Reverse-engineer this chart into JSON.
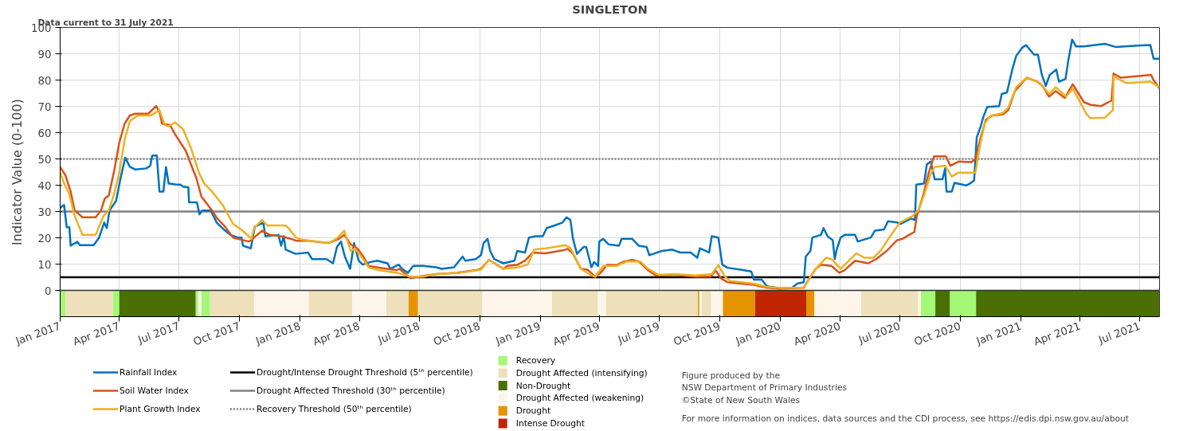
{
  "chart_data": {
    "type": "line",
    "title": "SINGLETON",
    "ylabel": "Indicator Value (0-100)",
    "annotations": [
      "Data current to 31 July 2021",
      "Figure produced by the\nNSW Department of Primary Industries\n©State of New South Wales",
      "For more information on indices, data sources and the CDI process, see https://edis.dpi.nsw.gov.au/about"
    ],
    "xlim": [
      "2017-01-01",
      "2021-07-31"
    ],
    "xticks": [
      {
        "value": "2017-01-01",
        "label": "Jan 2017"
      },
      {
        "value": "2017-04-01",
        "label": "Apr 2017"
      },
      {
        "value": "2017-07-01",
        "label": "Jul 2017"
      },
      {
        "value": "2017-10-01",
        "label": "Oct 2017"
      },
      {
        "value": "2018-01-01",
        "label": "Jan 2018"
      },
      {
        "value": "2018-04-01",
        "label": "Apr 2018"
      },
      {
        "value": "2018-07-01",
        "label": "Jul 2018"
      },
      {
        "value": "2018-10-01",
        "label": "Oct 2018"
      },
      {
        "value": "2019-01-01",
        "label": "Jan 2019"
      },
      {
        "value": "2019-04-01",
        "label": "Apr 2019"
      },
      {
        "value": "2019-07-01",
        "label": "Jul 2019"
      },
      {
        "value": "2019-10-01",
        "label": "Oct 2019"
      },
      {
        "value": "2020-01-01",
        "label": "Jan 2020"
      },
      {
        "value": "2020-04-01",
        "label": "Apr 2020"
      },
      {
        "value": "2020-07-01",
        "label": "Jul 2020"
      },
      {
        "value": "2020-10-01",
        "label": "Oct 2020"
      },
      {
        "value": "2021-01-01",
        "label": "Jan 2021"
      },
      {
        "value": "2021-04-01",
        "label": "Apr 2021"
      },
      {
        "value": "2021-07-01",
        "label": "Jul 2021"
      }
    ],
    "ylim": [
      -10,
      100
    ],
    "yticks": [
      0,
      10,
      20,
      30,
      40,
      50,
      60,
      70,
      80,
      90,
      100
    ],
    "grid": true,
    "legend": "bottom",
    "line_style": "solid",
    "marker": "none",
    "series": [
      {
        "name": "Rainfall Index",
        "color": "#0072bd",
        "x": [
          "2017-01-01",
          "2017-01-07",
          "2017-01-11",
          "2017-01-15",
          "2017-01-17",
          "2017-01-27",
          "2017-01-31",
          "2017-02-21",
          "2017-03-01",
          "2017-03-09",
          "2017-03-13",
          "2017-03-17",
          "2017-03-27",
          "2017-04-03",
          "2017-04-10",
          "2017-04-17",
          "2017-04-25",
          "2017-05-12",
          "2017-05-18",
          "2017-05-21",
          "2017-05-28",
          "2017-06-01",
          "2017-06-07",
          "2017-06-11",
          "2017-06-15",
          "2017-06-27",
          "2017-07-03",
          "2017-07-07",
          "2017-07-15",
          "2017-07-16",
          "2017-07-28",
          "2017-08-01",
          "2017-08-05",
          "2017-08-18",
          "2017-08-22",
          "2017-08-27",
          "2017-09-09",
          "2017-09-17",
          "2017-09-28",
          "2017-10-04",
          "2017-10-06",
          "2017-10-18",
          "2017-10-24",
          "2017-11-06",
          "2017-11-09",
          "2017-11-29",
          "2017-12-03",
          "2017-12-07",
          "2017-12-10",
          "2017-12-25",
          "2018-01-13",
          "2018-01-19",
          "2018-02-10",
          "2018-02-20",
          "2018-02-26",
          "2018-03-04",
          "2018-03-10",
          "2018-03-18",
          "2018-03-24",
          "2018-03-31",
          "2018-04-06",
          "2018-04-18",
          "2018-04-28",
          "2018-05-14",
          "2018-05-18",
          "2018-05-31",
          "2018-06-05",
          "2018-06-14",
          "2018-06-22",
          "2018-07-07",
          "2018-07-27",
          "2018-08-04",
          "2018-08-23",
          "2018-09-05",
          "2018-09-09",
          "2018-09-25",
          "2018-10-03",
          "2018-10-07",
          "2018-10-13",
          "2018-10-17",
          "2018-10-23",
          "2018-11-06",
          "2018-11-23",
          "2018-11-27",
          "2018-12-09",
          "2018-12-15",
          "2018-12-25",
          "2019-01-05",
          "2019-01-11",
          "2019-01-23",
          "2019-02-04",
          "2019-02-10",
          "2019-02-16",
          "2019-02-20",
          "2019-02-26",
          "2019-03-08",
          "2019-03-12",
          "2019-03-20",
          "2019-03-24",
          "2019-03-30",
          "2019-04-01",
          "2019-04-07",
          "2019-04-15",
          "2019-05-01",
          "2019-05-05",
          "2019-05-21",
          "2019-05-31",
          "2019-06-12",
          "2019-06-16",
          "2019-06-22",
          "2019-07-05",
          "2019-07-21",
          "2019-08-02",
          "2019-08-18",
          "2019-08-28",
          "2019-09-01",
          "2019-09-15",
          "2019-09-19",
          "2019-09-29",
          "2019-10-05",
          "2019-10-13",
          "2019-11-02",
          "2019-11-18",
          "2019-11-22",
          "2019-12-04",
          "2019-12-12",
          "2019-12-28",
          "2020-01-19",
          "2020-01-27",
          "2020-02-06",
          "2020-02-09",
          "2020-02-16",
          "2020-02-19",
          "2020-03-03",
          "2020-03-07",
          "2020-03-13",
          "2020-03-21",
          "2020-03-24",
          "2020-03-27",
          "2020-04-02",
          "2020-04-08",
          "2020-04-24",
          "2020-04-28",
          "2020-05-18",
          "2020-05-24",
          "2020-06-07",
          "2020-06-13",
          "2020-06-27",
          "2020-07-02",
          "2020-07-18",
          "2020-07-24",
          "2020-07-26",
          "2020-08-07",
          "2020-08-11",
          "2020-08-17",
          "2020-08-23",
          "2020-09-04",
          "2020-09-08",
          "2020-09-10",
          "2020-09-18",
          "2020-09-22",
          "2020-10-10",
          "2020-10-16",
          "2020-10-22",
          "2020-10-26",
          "2020-11-01",
          "2020-11-05",
          "2020-11-11",
          "2020-11-29",
          "2020-12-03",
          "2020-12-11",
          "2020-12-19",
          "2020-12-25",
          "2021-01-03",
          "2021-01-09",
          "2021-01-21",
          "2021-01-27",
          "2021-02-02",
          "2021-02-08",
          "2021-02-14",
          "2021-02-24",
          "2021-02-28",
          "2021-03-10",
          "2021-03-14",
          "2021-03-20",
          "2021-03-26",
          "2021-04-07",
          "2021-05-09",
          "2021-05-25",
          "2021-06-27",
          "2021-07-17",
          "2021-07-22",
          "2021-07-31"
        ],
        "values": [
          31.4,
          32.5,
          24,
          24,
          17,
          18.5,
          17.2,
          17.2,
          20,
          25.8,
          23.7,
          30.4,
          34,
          42.8,
          50.5,
          47,
          46,
          46.4,
          47.4,
          51.3,
          51.3,
          37.6,
          37.6,
          46.9,
          40.7,
          40.2,
          40.2,
          39.5,
          39.2,
          33.5,
          33.5,
          28.9,
          30.4,
          30.4,
          28.4,
          25.8,
          22.7,
          21.1,
          20.1,
          20.1,
          17,
          16,
          24.2,
          25.8,
          20.6,
          21.1,
          17,
          20.6,
          15.5,
          13.9,
          14.4,
          11.9,
          11.9,
          10.3,
          16.5,
          18.6,
          12.9,
          8.2,
          18,
          11.3,
          9.8,
          10.8,
          11.3,
          10.3,
          8.2,
          9.8,
          8.2,
          6.7,
          9.3,
          9.3,
          8.8,
          8.2,
          8.8,
          12.9,
          11.3,
          11.9,
          13.4,
          18,
          19.6,
          15,
          11.9,
          10.3,
          11.3,
          15,
          14.4,
          20.1,
          20.6,
          20.6,
          23.7,
          24.7,
          25.8,
          27.8,
          26.8,
          19.6,
          13.9,
          16.5,
          16.5,
          8.8,
          10.8,
          9.3,
          18.6,
          19.6,
          17.5,
          17,
          19.6,
          19.6,
          17,
          16.5,
          13.4,
          13.9,
          15,
          15.5,
          14.4,
          14.4,
          12.4,
          16,
          14.4,
          20.6,
          20.1,
          9.8,
          8.6,
          7.9,
          7.2,
          4.1,
          4.1,
          1.5,
          1,
          1,
          2.6,
          3.1,
          12.9,
          15,
          20.1,
          21.1,
          23.7,
          20.6,
          19.1,
          11.9,
          15.5,
          20.1,
          21.1,
          21.1,
          18.6,
          20.1,
          22.7,
          23.2,
          26.3,
          25.8,
          25.3,
          27.3,
          26.8,
          40.2,
          40.7,
          47.9,
          49,
          42.3,
          42.3,
          46.4,
          37.6,
          37.6,
          40.9,
          39.9,
          40.7,
          41.8,
          58.2,
          62.4,
          66,
          69.8,
          70.1,
          74.7,
          75.3,
          84,
          89.2,
          92.3,
          93.3,
          89.7,
          89.7,
          82,
          77.8,
          82,
          84,
          79.4,
          80.4,
          87.1,
          95.4,
          92.8,
          92.8,
          93.8,
          92.6,
          93.1,
          93.3,
          88.1,
          88.1
        ]
      },
      {
        "name": "Soil Water Index",
        "color": "#d95319",
        "x": [
          "2017-01-01",
          "2017-01-09",
          "2017-01-17",
          "2017-01-23",
          "2017-02-04",
          "2017-02-24",
          "2017-03-04",
          "2017-03-10",
          "2017-03-16",
          "2017-03-24",
          "2017-04-01",
          "2017-04-09",
          "2017-04-17",
          "2017-04-25",
          "2017-05-15",
          "2017-05-27",
          "2017-06-01",
          "2017-06-05",
          "2017-06-17",
          "2017-06-25",
          "2017-07-11",
          "2017-07-19",
          "2017-07-27",
          "2017-08-04",
          "2017-08-20",
          "2017-08-28",
          "2017-09-09",
          "2017-09-21",
          "2017-10-03",
          "2017-10-15",
          "2017-10-19",
          "2017-10-23",
          "2017-11-04",
          "2017-11-16",
          "2017-12-02",
          "2017-12-18",
          "2017-12-26",
          "2018-01-12",
          "2018-02-13",
          "2018-03-01",
          "2018-03-09",
          "2018-03-19",
          "2018-03-29",
          "2018-04-07",
          "2018-04-15",
          "2018-04-27",
          "2018-05-13",
          "2018-05-28",
          "2018-06-01",
          "2018-06-18",
          "2018-06-30",
          "2018-07-27",
          "2018-08-27",
          "2018-09-25",
          "2018-10-03",
          "2018-10-15",
          "2018-10-27",
          "2018-11-06",
          "2018-11-12",
          "2018-11-28",
          "2018-12-09",
          "2018-12-21",
          "2019-01-09",
          "2019-02-04",
          "2019-02-12",
          "2019-02-20",
          "2019-03-04",
          "2019-03-14",
          "2019-03-26",
          "2019-04-03",
          "2019-04-13",
          "2019-04-27",
          "2019-05-09",
          "2019-05-21",
          "2019-05-31",
          "2019-06-14",
          "2019-06-26",
          "2019-07-08",
          "2019-07-24",
          "2019-08-25",
          "2019-09-17",
          "2019-09-25",
          "2019-10-03",
          "2019-10-13",
          "2019-11-02",
          "2019-11-22",
          "2019-12-12",
          "2019-12-31",
          "2020-02-06",
          "2020-02-12",
          "2020-02-24",
          "2020-03-03",
          "2020-03-19",
          "2020-03-31",
          "2020-04-08",
          "2020-04-24",
          "2020-05-14",
          "2020-05-26",
          "2020-06-11",
          "2020-06-27",
          "2020-07-05",
          "2020-07-15",
          "2020-07-23",
          "2020-07-27",
          "2020-08-06",
          "2020-08-14",
          "2020-08-22",
          "2020-09-03",
          "2020-09-09",
          "2020-09-16",
          "2020-09-28",
          "2020-10-18",
          "2020-10-24",
          "2020-11-01",
          "2020-11-09",
          "2020-11-19",
          "2020-12-05",
          "2020-12-13",
          "2020-12-23",
          "2021-01-10",
          "2021-01-26",
          "2021-02-03",
          "2021-02-13",
          "2021-02-23",
          "2021-03-09",
          "2021-03-21",
          "2021-04-07",
          "2021-04-17",
          "2021-05-03",
          "2021-05-19",
          "2021-05-22",
          "2021-06-02",
          "2021-07-18",
          "2021-07-22",
          "2021-07-31"
        ],
        "values": [
          46.9,
          43.8,
          37.6,
          30.4,
          27.8,
          27.8,
          30.4,
          35,
          36.1,
          45.4,
          56.2,
          63.4,
          66.5,
          67.2,
          67.2,
          70.1,
          68,
          63.4,
          62.9,
          59.3,
          53.1,
          47.9,
          42.8,
          35.6,
          30.4,
          27.3,
          24.2,
          20.1,
          19.3,
          18.6,
          19.1,
          20.1,
          22.7,
          21.1,
          20.6,
          19.6,
          18.9,
          18.9,
          18,
          19.6,
          21.1,
          17.5,
          16,
          12.9,
          9.3,
          8.8,
          8.2,
          7.7,
          8.2,
          4.6,
          5.2,
          6.2,
          6.7,
          7.7,
          8.2,
          11.6,
          9.8,
          8.2,
          9.3,
          9.8,
          11.3,
          14.4,
          14.1,
          15.2,
          15.8,
          13.9,
          8.2,
          7.9,
          5.2,
          6.7,
          9.8,
          9.6,
          11,
          11.6,
          11,
          7.7,
          5.7,
          5.7,
          5.9,
          5.2,
          5.2,
          7.5,
          4.6,
          3.1,
          2.6,
          2.1,
          1,
          0.7,
          1,
          3.6,
          8.2,
          9.8,
          9.3,
          6.7,
          7.7,
          11.3,
          10.3,
          11.9,
          15,
          19.1,
          19.6,
          21.1,
          22.2,
          28.4,
          36.6,
          44.8,
          51,
          51,
          51,
          47.4,
          49,
          48.8,
          50,
          58.2,
          65,
          66.5,
          67,
          68.6,
          75.8,
          80.9,
          79.4,
          77.8,
          73.7,
          75.8,
          73.2,
          78.4,
          71.6,
          70.6,
          70.1,
          72.2,
          82.5,
          80.9,
          82,
          79.9,
          76.8
        ]
      },
      {
        "name": "Plant Growth Index",
        "color": "#edb120",
        "x": [
          "2017-01-01",
          "2017-01-07",
          "2017-01-15",
          "2017-01-23",
          "2017-02-04",
          "2017-02-24",
          "2017-03-08",
          "2017-03-16",
          "2017-03-24",
          "2017-04-01",
          "2017-04-09",
          "2017-04-17",
          "2017-04-29",
          "2017-05-19",
          "2017-06-01",
          "2017-06-09",
          "2017-06-15",
          "2017-06-25",
          "2017-07-07",
          "2017-07-19",
          "2017-07-31",
          "2017-08-08",
          "2017-08-20",
          "2017-09-05",
          "2017-09-21",
          "2017-10-03",
          "2017-10-15",
          "2017-10-19",
          "2017-10-23",
          "2017-11-04",
          "2017-11-12",
          "2017-12-10",
          "2017-12-16",
          "2017-12-26",
          "2018-01-03",
          "2018-02-13",
          "2018-02-25",
          "2018-03-09",
          "2018-03-19",
          "2018-03-25",
          "2018-04-07",
          "2018-04-15",
          "2018-04-27",
          "2018-05-28",
          "2018-06-18",
          "2018-07-07",
          "2018-07-27",
          "2018-09-01",
          "2018-10-03",
          "2018-10-15",
          "2018-11-06",
          "2018-11-28",
          "2018-12-13",
          "2018-12-23",
          "2019-01-09",
          "2019-02-08",
          "2019-02-16",
          "2019-03-04",
          "2019-03-20",
          "2019-03-26",
          "2019-04-07",
          "2019-04-27",
          "2019-05-13",
          "2019-06-02",
          "2019-06-14",
          "2019-06-30",
          "2019-07-24",
          "2019-08-25",
          "2019-09-19",
          "2019-09-29",
          "2019-10-09",
          "2019-10-17",
          "2019-11-22",
          "2019-12-12",
          "2019-12-31",
          "2020-02-06",
          "2020-02-16",
          "2020-02-28",
          "2020-03-11",
          "2020-03-19",
          "2020-04-02",
          "2020-04-26",
          "2020-05-08",
          "2020-05-22",
          "2020-06-03",
          "2020-06-15",
          "2020-07-01",
          "2020-07-21",
          "2020-07-29",
          "2020-08-06",
          "2020-08-17",
          "2020-08-23",
          "2020-09-08",
          "2020-09-18",
          "2020-09-28",
          "2020-10-24",
          "2020-10-30",
          "2020-11-07",
          "2020-11-15",
          "2020-12-05",
          "2020-12-13",
          "2020-12-25",
          "2021-01-10",
          "2021-01-30",
          "2021-02-13",
          "2021-02-23",
          "2021-03-11",
          "2021-03-21",
          "2021-04-11",
          "2021-04-17",
          "2021-05-09",
          "2021-05-21",
          "2021-05-22",
          "2021-06-10",
          "2021-07-17",
          "2021-07-31"
        ],
        "values": [
          44.8,
          40.7,
          36.6,
          28.4,
          21.1,
          21.1,
          28.4,
          30.4,
          36.6,
          44.8,
          57.2,
          64.4,
          66.5,
          66.5,
          68.6,
          62.9,
          62.4,
          63.9,
          61.3,
          54.1,
          44.8,
          40.7,
          37.6,
          32.5,
          25.3,
          23.2,
          20.6,
          19.6,
          23.7,
          26.8,
          24.7,
          24.7,
          23.2,
          20.1,
          19.3,
          18,
          19.6,
          22.7,
          14.9,
          16,
          11.9,
          8.8,
          7.9,
          6.7,
          5.2,
          5.2,
          6.2,
          6.7,
          7.9,
          11.6,
          8.2,
          8.8,
          9.8,
          15.5,
          16,
          17.2,
          16.2,
          8.2,
          5.7,
          5.2,
          9.3,
          9.3,
          11,
          11,
          8.2,
          5.9,
          6.2,
          5.7,
          6.2,
          9.6,
          5.2,
          3.6,
          2.6,
          1.3,
          1,
          1,
          5.2,
          9.3,
          12.4,
          11.9,
          8.2,
          14.1,
          12.4,
          12.4,
          15.5,
          20.1,
          25.8,
          28.4,
          30.4,
          35.6,
          44.3,
          46.9,
          47.4,
          43.3,
          44.8,
          44.8,
          54.1,
          63.4,
          66.3,
          67.5,
          69.6,
          77.3,
          80.9,
          78.9,
          74.7,
          77.3,
          73.7,
          76.8,
          67,
          65.5,
          65.7,
          68.6,
          81.4,
          78.9,
          79.4,
          77.3
        ]
      }
    ],
    "ref_lines": [
      {
        "axis": "y",
        "value": 5,
        "label": "Drought/Intense Drought Threshold (5ᵗʰ percentile)",
        "color": "#000000",
        "line_style": "solid"
      },
      {
        "axis": "y",
        "value": 30,
        "label": "Drought Affected Threshold (30ᵗʰ percentile)",
        "color": "#808080",
        "line_style": "solid"
      },
      {
        "axis": "y",
        "value": 50,
        "label": "Recovery Threshold (50ᵗʰ percentile)",
        "color": "#808080",
        "line_style": "dotted"
      }
    ],
    "bands": [
      {
        "axis": "x",
        "from": "2017-01-01",
        "to": "2017-01-09",
        "label": "Recovery",
        "color": "#a3f876"
      },
      {
        "axis": "x",
        "from": "2017-01-09",
        "to": "2017-03-22",
        "label": "Drought Affected (intensifying)",
        "color": "#ede0bb"
      },
      {
        "axis": "x",
        "from": "2017-03-22",
        "to": "2017-04-01",
        "color": "#a3f876"
      },
      {
        "axis": "x",
        "from": "2017-04-01",
        "to": "2017-07-26",
        "label": "Non-Drought",
        "color": "#4a7004"
      },
      {
        "axis": "x",
        "from": "2017-07-26",
        "to": "2017-07-30",
        "color": "#a3f876"
      },
      {
        "axis": "x",
        "from": "2017-07-30",
        "to": "2017-08-04",
        "label": "Drought Affected (weakening)",
        "color": "#fdf5e9"
      },
      {
        "axis": "x",
        "from": "2017-08-04",
        "to": "2017-08-17",
        "color": "#a3f876"
      },
      {
        "axis": "x",
        "from": "2017-08-17",
        "to": "2017-10-23",
        "color": "#ede0bb"
      },
      {
        "axis": "x",
        "from": "2017-10-23",
        "to": "2018-01-14",
        "color": "#fdf5e9"
      },
      {
        "axis": "x",
        "from": "2018-01-14",
        "to": "2018-03-21",
        "color": "#ede0bb"
      },
      {
        "axis": "x",
        "from": "2018-03-21",
        "to": "2018-05-12",
        "color": "#fdf5e9"
      },
      {
        "axis": "x",
        "from": "2018-05-12",
        "to": "2018-06-15",
        "color": "#ede0bb"
      },
      {
        "axis": "x",
        "from": "2018-06-15",
        "to": "2018-06-29",
        "label": "Drought",
        "color": "#e59400"
      },
      {
        "axis": "x",
        "from": "2018-06-29",
        "to": "2018-10-05",
        "color": "#ede0bb"
      },
      {
        "axis": "x",
        "from": "2018-10-05",
        "to": "2019-01-19",
        "color": "#fdf5e9"
      },
      {
        "axis": "x",
        "from": "2019-01-19",
        "to": "2019-03-30",
        "color": "#ede0bb"
      },
      {
        "axis": "x",
        "from": "2019-03-30",
        "to": "2019-04-11",
        "color": "#fdf5e9"
      },
      {
        "axis": "x",
        "from": "2019-04-11",
        "to": "2019-08-29",
        "color": "#ede0bb"
      },
      {
        "axis": "x",
        "from": "2019-08-29",
        "to": "2019-08-31",
        "color": "#e59400"
      },
      {
        "axis": "x",
        "from": "2019-08-31",
        "to": "2019-09-04",
        "color": "#fdf5e9"
      },
      {
        "axis": "x",
        "from": "2019-09-04",
        "to": "2019-09-18",
        "color": "#ede0bb"
      },
      {
        "axis": "x",
        "from": "2019-09-18",
        "to": "2019-10-06",
        "color": "#fdf5e9"
      },
      {
        "axis": "x",
        "from": "2019-10-06",
        "to": "2019-11-24",
        "color": "#e59400"
      },
      {
        "axis": "x",
        "from": "2019-11-24",
        "to": "2020-02-10",
        "label": "Intense Drought",
        "color": "#bf2600"
      },
      {
        "axis": "x",
        "from": "2020-02-10",
        "to": "2020-02-22",
        "color": "#e59400"
      },
      {
        "axis": "x",
        "from": "2020-02-22",
        "to": "2020-05-03",
        "color": "#fdf5e9"
      },
      {
        "axis": "x",
        "from": "2020-05-03",
        "to": "2020-07-29",
        "color": "#ede0bb"
      },
      {
        "axis": "x",
        "from": "2020-07-29",
        "to": "2020-08-02",
        "color": "#fdf5e9"
      },
      {
        "axis": "x",
        "from": "2020-08-02",
        "to": "2020-08-24",
        "color": "#a3f876"
      },
      {
        "axis": "x",
        "from": "2020-08-24",
        "to": "2020-09-15",
        "color": "#4a7004"
      },
      {
        "axis": "x",
        "from": "2020-09-15",
        "to": "2020-10-25",
        "color": "#a3f876"
      },
      {
        "axis": "x",
        "from": "2020-10-25",
        "to": "2021-07-31",
        "color": "#4a7004"
      }
    ]
  }
}
